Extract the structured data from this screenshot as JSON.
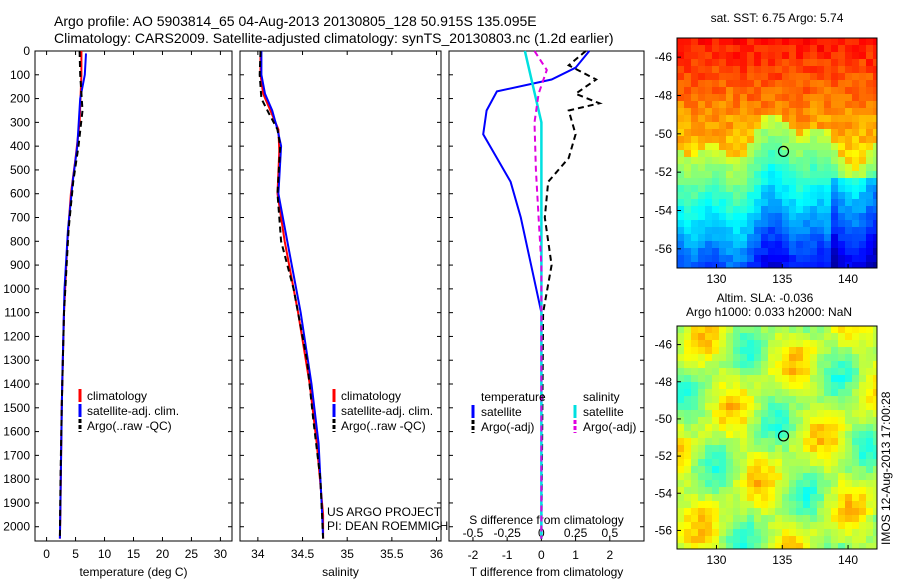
{
  "header": {
    "line1": "Argo profile: AO 5903814_65 04-Aug-2013 20130805_128 50.915S 135.095E",
    "line2": "Climatology: CARS2009. Satellite-adjusted climatology: synTS_20130803.nc (1.2d earlier)"
  },
  "colors": {
    "climatology": "#ff0000",
    "satellite": "#0000ff",
    "argo": "#000000",
    "s_sat": "#00e0e0",
    "s_argo": "#e000e0"
  },
  "depth_ticks": [
    "0",
    "100",
    "200",
    "300",
    "400",
    "500",
    "600",
    "700",
    "800",
    "900",
    "1000",
    "1100",
    "1200",
    "1300",
    "1400",
    "1500",
    "1600",
    "1700",
    "1800",
    "1900",
    "2000"
  ],
  "chart_data": [
    {
      "type": "line",
      "id": "temperature",
      "xlabel": "temperature (deg C)",
      "xticks": [
        "0",
        "5",
        "10",
        "15",
        "20",
        "25",
        "30"
      ],
      "xlim": [
        -2,
        32
      ],
      "ylim": [
        2060,
        0
      ],
      "legend": [
        "climatology",
        "satellite-adj. clim.",
        "Argo(..raw -QC)"
      ],
      "series": [
        {
          "name": "climatology",
          "points": [
            [
              6.0,
              0
            ],
            [
              6.0,
              100
            ],
            [
              5.7,
              300
            ],
            [
              5.0,
              450
            ],
            [
              4.2,
              600
            ],
            [
              3.6,
              800
            ],
            [
              3.0,
              1100
            ],
            [
              2.6,
              1500
            ],
            [
              2.4,
              1900
            ],
            [
              2.3,
              2050
            ]
          ]
        },
        {
          "name": "satellite-adj. clim.",
          "points": [
            [
              6.8,
              10
            ],
            [
              6.6,
              100
            ],
            [
              5.8,
              200
            ],
            [
              5.3,
              400
            ],
            [
              4.5,
              550
            ],
            [
              3.7,
              750
            ],
            [
              3.1,
              1000
            ],
            [
              2.7,
              1400
            ],
            [
              2.5,
              1700
            ],
            [
              2.3,
              2050
            ]
          ]
        },
        {
          "name": "Argo(..raw -QC)",
          "points": [
            [
              5.7,
              0
            ],
            [
              5.8,
              100
            ],
            [
              6.2,
              250
            ],
            [
              5.5,
              400
            ],
            [
              4.6,
              550
            ],
            [
              3.8,
              750
            ],
            [
              3.0,
              1100
            ],
            [
              2.6,
              1500
            ],
            [
              2.4,
              1800
            ],
            [
              2.3,
              2050
            ]
          ]
        }
      ]
    },
    {
      "type": "line",
      "id": "salinity",
      "xlabel": "salinity",
      "xticks": [
        "34",
        "34.5",
        "35",
        "35.5",
        "36"
      ],
      "xlim": [
        33.8,
        36.05
      ],
      "ylim": [
        2060,
        0
      ],
      "legend": [
        "climatology",
        "satellite-adj. clim.",
        "Argo(..raw -QC)"
      ],
      "annotations": [
        "US ARGO PROJECT",
        "PI: DEAN ROEMMICH"
      ],
      "series": [
        {
          "name": "climatology",
          "points": [
            [
              34.03,
              0
            ],
            [
              34.03,
              100
            ],
            [
              34.06,
              180
            ],
            [
              34.14,
              250
            ],
            [
              34.23,
              330
            ],
            [
              34.24,
              420
            ],
            [
              34.22,
              600
            ],
            [
              34.3,
              800
            ],
            [
              34.45,
              1100
            ],
            [
              34.58,
              1400
            ],
            [
              34.66,
              1650
            ],
            [
              34.73,
              1950
            ],
            [
              34.73,
              2050
            ]
          ]
        },
        {
          "name": "satellite-adj. clim.",
          "points": [
            [
              34.04,
              0
            ],
            [
              34.04,
              100
            ],
            [
              34.08,
              180
            ],
            [
              34.16,
              250
            ],
            [
              34.22,
              330
            ],
            [
              34.26,
              400
            ],
            [
              34.23,
              600
            ],
            [
              34.33,
              800
            ],
            [
              34.48,
              1100
            ],
            [
              34.6,
              1400
            ],
            [
              34.68,
              1650
            ],
            [
              34.72,
              1950
            ],
            [
              34.73,
              2050
            ]
          ]
        },
        {
          "name": "Argo(..raw -QC)",
          "points": [
            [
              34.03,
              0
            ],
            [
              34.02,
              100
            ],
            [
              34.04,
              200
            ],
            [
              34.12,
              260
            ],
            [
              34.22,
              330
            ],
            [
              34.25,
              400
            ],
            [
              34.22,
              600
            ],
            [
              34.26,
              800
            ],
            [
              34.4,
              1000
            ],
            [
              34.55,
              1300
            ],
            [
              34.62,
              1550
            ],
            [
              34.7,
              1800
            ],
            [
              34.73,
              2050
            ]
          ]
        }
      ]
    },
    {
      "type": "line",
      "id": "difference",
      "xlabel": "T difference from climatology",
      "x2label": "S difference from climatology",
      "xticks": [
        "-2",
        "-1",
        "0",
        "1",
        "2"
      ],
      "x2ticks": [
        "-0.5",
        "-0.25",
        "0",
        "0.25",
        "0.5"
      ],
      "xlim": [
        -2.7,
        3.0
      ],
      "ylim": [
        2060,
        0
      ],
      "legend_t_title": "temperature",
      "legend_s_title": "salinity",
      "legend_t": [
        "satellite",
        "Argo(-adj)"
      ],
      "legend_s": [
        "satellite",
        "Argo(-adj)"
      ],
      "series": [
        {
          "name": "T satellite",
          "points": [
            [
              1.4,
              0
            ],
            [
              1.0,
              70
            ],
            [
              0.3,
              120
            ],
            [
              -1.3,
              170
            ],
            [
              -1.6,
              250
            ],
            [
              -1.7,
              350
            ],
            [
              -1.3,
              450
            ],
            [
              -0.9,
              550
            ],
            [
              -0.6,
              700
            ],
            [
              -0.3,
              900
            ],
            [
              0,
              1100
            ],
            [
              0,
              2050
            ]
          ]
        },
        {
          "name": "T Argo(-adj)",
          "points": [
            [
              1.3,
              0
            ],
            [
              0.8,
              60
            ],
            [
              1.6,
              120
            ],
            [
              1.0,
              180
            ],
            [
              1.7,
              220
            ],
            [
              0.8,
              250
            ],
            [
              1.0,
              350
            ],
            [
              0.8,
              450
            ],
            [
              0.2,
              550
            ],
            [
              0.1,
              700
            ],
            [
              0.3,
              900
            ],
            [
              0.05,
              1100
            ],
            [
              0,
              2050
            ]
          ]
        },
        {
          "name": "S satellite",
          "points": [
            [
              -0.12,
              0
            ],
            [
              -0.08,
              100
            ],
            [
              -0.04,
              200
            ],
            [
              0,
              300
            ],
            [
              0,
              2050
            ]
          ]
        },
        {
          "name": "S Argo(-adj)",
          "points": [
            [
              -0.05,
              0
            ],
            [
              0.04,
              80
            ],
            [
              -0.02,
              180
            ],
            [
              -0.05,
              300
            ],
            [
              -0.04,
              500
            ],
            [
              -0.02,
              700
            ],
            [
              0,
              900
            ],
            [
              0,
              2050
            ]
          ]
        }
      ]
    }
  ],
  "maps": [
    {
      "title": "sat. SST: 6.75 Argo: 5.74",
      "yticks": [
        "-46",
        "-48",
        "-50",
        "-52",
        "-54",
        "-56"
      ],
      "xticks": [
        "130",
        "135",
        "140"
      ],
      "marker_lon": 135.095,
      "marker_lat": -50.915
    },
    {
      "title_line1": "Altim. SLA: -0.036",
      "title_line2": "Argo h1000: 0.033 h2000: NaN",
      "yticks": [
        "-46",
        "-48",
        "-50",
        "-52",
        "-54",
        "-56"
      ],
      "xticks": [
        "130",
        "135",
        "140"
      ],
      "marker_lon": 135.095,
      "marker_lat": -50.915
    }
  ],
  "credit": "IMOS 12-Aug-2013 17:00:28"
}
